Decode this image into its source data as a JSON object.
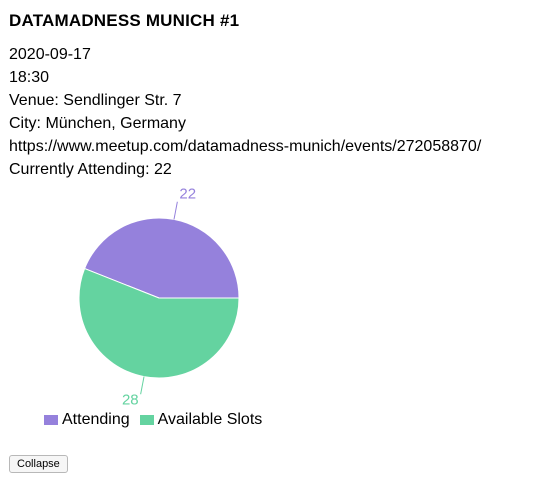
{
  "event": {
    "title": "DATAMADNESS MUNICH #1",
    "date": "2020-09-17",
    "time": "18:30",
    "venue": "Venue: Sendlinger Str. 7",
    "city": "City: München, Germany",
    "url": "https://www.meetup.com/datamadness-munich/events/272058870/",
    "attending": "Currently Attending: 22"
  },
  "chart_data": {
    "type": "pie",
    "categories": [
      "Attending",
      "Available Slots"
    ],
    "values": [
      22,
      28
    ],
    "colors": [
      "#9581dc",
      "#64d3a0"
    ],
    "legend_position": "bottom-left",
    "value_labels": [
      "22",
      "28"
    ]
  },
  "legend": {
    "items": [
      {
        "label": "Attending",
        "color": "#9581dc"
      },
      {
        "label": "Available Slots",
        "color": "#64d3a0"
      }
    ]
  },
  "actions": {
    "collapse_label": "Collapse"
  }
}
